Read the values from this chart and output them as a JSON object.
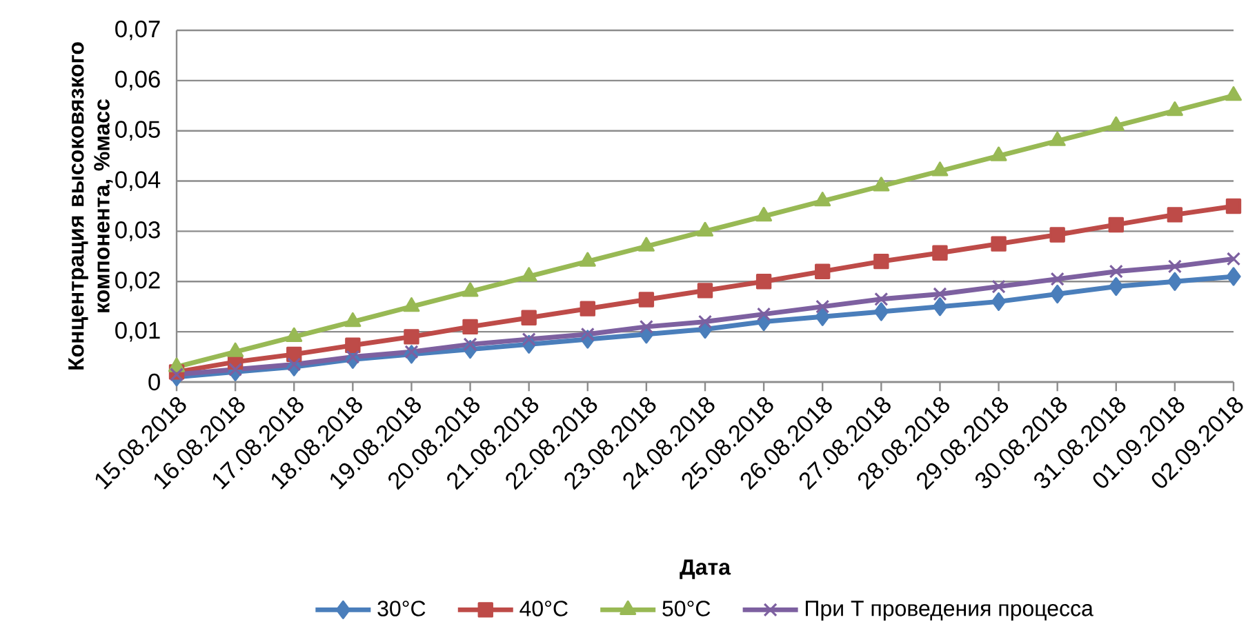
{
  "chart_data": {
    "type": "line",
    "xlabel": "Дата",
    "ylabel": "Концентрация высоковязкого компонента, %масс",
    "categories": [
      "15.08.2018",
      "16.08.2018",
      "17.08.2018",
      "18.08.2018",
      "19.08.2018",
      "20.08.2018",
      "21.08.2018",
      "22.08.2018",
      "23.08.2018",
      "24.08.2018",
      "25.08.2018",
      "26.08.2018",
      "27.08.2018",
      "28.08.2018",
      "29.08.2018",
      "30.08.2018",
      "31.08.2018",
      "01.09.2018",
      "02.09.2018"
    ],
    "series": [
      {
        "name": "30°C",
        "color": "#4a7ebb",
        "marker": "diamond",
        "values": [
          0.001,
          0.002,
          0.003,
          0.0045,
          0.0055,
          0.0065,
          0.0075,
          0.0085,
          0.0095,
          0.0105,
          0.012,
          0.013,
          0.014,
          0.015,
          0.016,
          0.0175,
          0.019,
          0.02,
          0.021
        ]
      },
      {
        "name": "40°C",
        "color": "#be4b48",
        "marker": "square",
        "values": [
          0.002,
          0.004,
          0.0055,
          0.0073,
          0.009,
          0.011,
          0.0128,
          0.0146,
          0.0164,
          0.0182,
          0.02,
          0.022,
          0.024,
          0.0257,
          0.0275,
          0.0293,
          0.0313,
          0.0333,
          0.035
        ]
      },
      {
        "name": "50°C",
        "color": "#98b954",
        "marker": "triangle",
        "values": [
          0.003,
          0.006,
          0.009,
          0.012,
          0.015,
          0.018,
          0.021,
          0.024,
          0.027,
          0.03,
          0.033,
          0.036,
          0.039,
          0.042,
          0.045,
          0.048,
          0.051,
          0.054,
          0.057
        ]
      },
      {
        "name": "При T проведения процесса",
        "color": "#7d60a0",
        "marker": "cross",
        "values": [
          0.0015,
          0.0025,
          0.0035,
          0.005,
          0.006,
          0.0075,
          0.0085,
          0.0095,
          0.011,
          0.012,
          0.0135,
          0.015,
          0.0165,
          0.0175,
          0.019,
          0.0205,
          0.022,
          0.023,
          0.0245
        ]
      }
    ],
    "ylim": [
      0,
      0.07
    ],
    "yticks": [
      0,
      {
        "value": 0.01,
        "label": "0,01"
      },
      {
        "value": 0.02,
        "label": "0,02"
      },
      {
        "value": 0.03,
        "label": "0,03"
      },
      {
        "value": 0.04,
        "label": "0,04"
      },
      {
        "value": 0.05,
        "label": "0,05"
      },
      {
        "value": 0.06,
        "label": "0,06"
      },
      {
        "value": 0.07,
        "label": "0,07"
      }
    ],
    "grid": "y",
    "legend": "bottom",
    "line_style": "solid"
  }
}
